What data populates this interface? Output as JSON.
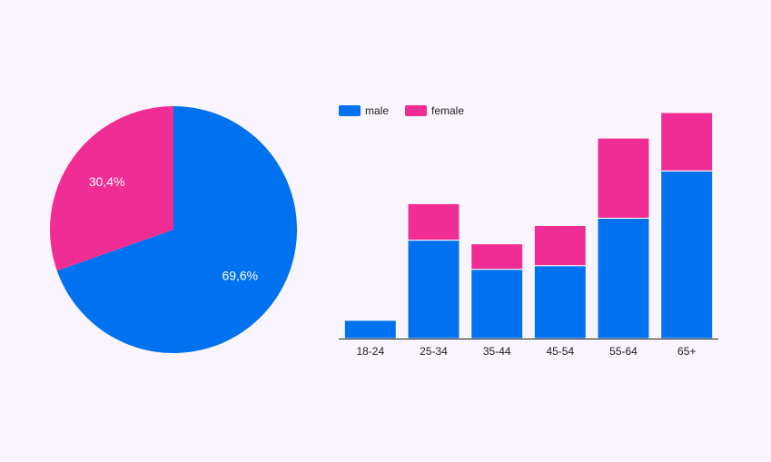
{
  "colors": {
    "background": "#f9f4fe",
    "male": "#0072ef",
    "female": "#f02d94",
    "axis": "#222222",
    "label_dark": "#222222",
    "label_light": "#ffffff"
  },
  "chart_data": [
    {
      "type": "pie",
      "slices": [
        {
          "name": "male",
          "value": 69.6,
          "label": "69,6%"
        },
        {
          "name": "female",
          "value": 30.4,
          "label": "30,4%"
        }
      ]
    },
    {
      "type": "bar",
      "stacked": true,
      "categories": [
        "18-24",
        "25-34",
        "35-44",
        "45-54",
        "55-64",
        "65+"
      ],
      "series": [
        {
          "name": "male",
          "values": [
            2.5,
            13.5,
            9.5,
            10.0,
            16.5,
            23.0
          ]
        },
        {
          "name": "female",
          "values": [
            0,
            5.0,
            3.5,
            5.5,
            11.0,
            8.0
          ]
        }
      ],
      "ylim": [
        0,
        32
      ],
      "legend": "top-left",
      "grid": false
    }
  ]
}
